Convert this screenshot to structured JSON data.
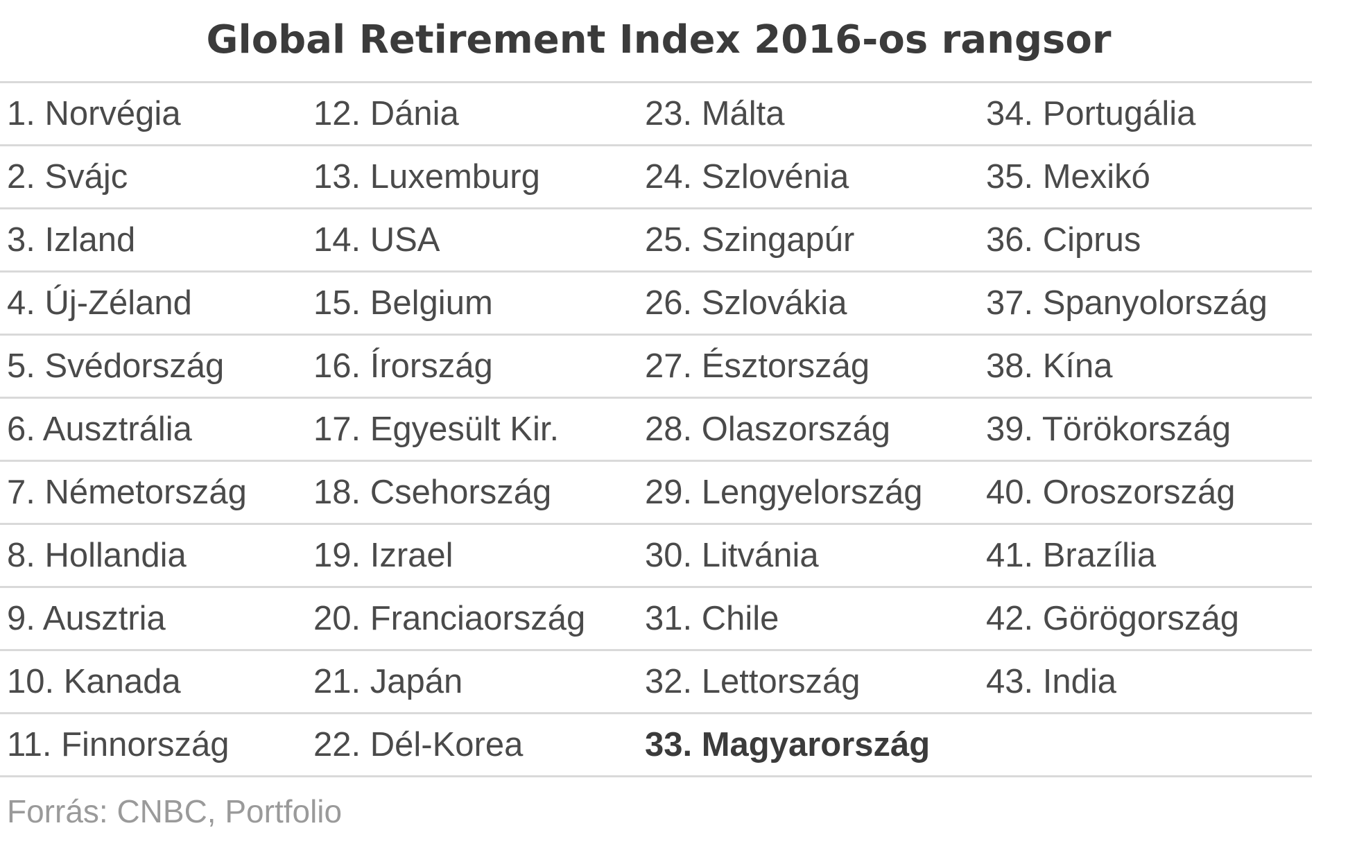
{
  "title": "Global Retirement Index 2016-os rangsor",
  "rows": [
    [
      "1. Norvégia",
      "12. Dánia",
      "23. Málta",
      "34. Portugália"
    ],
    [
      "2. Svájc",
      "13. Luxemburg",
      "24. Szlovénia",
      "35. Mexikó"
    ],
    [
      "3. Izland",
      "14. USA",
      "25. Szingapúr",
      "36. Ciprus"
    ],
    [
      "4. Új-Zéland",
      "15. Belgium",
      "26. Szlovákia",
      "37. Spanyolország"
    ],
    [
      "5. Svédország",
      "16. Írország",
      "27. Észtország",
      "38. Kína"
    ],
    [
      "6. Ausztrália",
      "17. Egyesült Kir.",
      "28. Olaszország",
      "39. Törökország"
    ],
    [
      "7. Németország",
      "18. Csehország",
      "29. Lengyelország",
      "40. Oroszország"
    ],
    [
      "8. Hollandia",
      "19. Izrael",
      "30. Litvánia",
      "41. Brazília"
    ],
    [
      "9. Ausztria",
      "20. Franciaország",
      "31. Chile",
      "42. Görögország"
    ],
    [
      "10. Kanada",
      "21. Japán",
      "32. Lettország",
      "43. India"
    ],
    [
      "11. Finnország",
      "22. Dél-Korea",
      "33. Magyarország",
      ""
    ]
  ],
  "highlight": "33. Magyarország",
  "source": "Forrás: CNBC, Portfolio"
}
